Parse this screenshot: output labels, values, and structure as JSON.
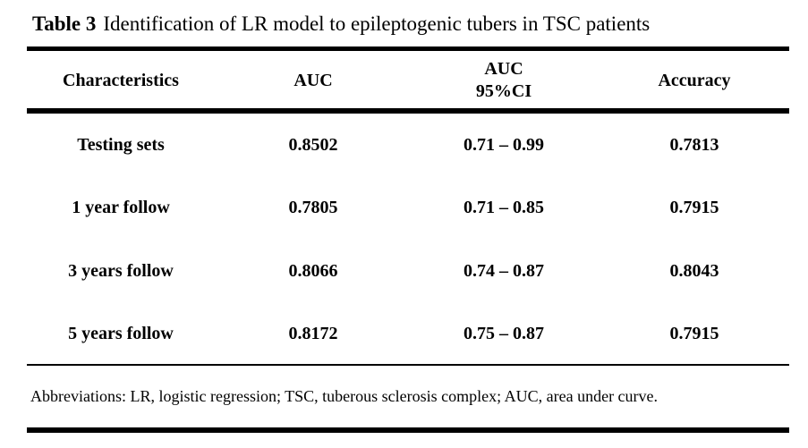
{
  "caption": {
    "label": "Table 3",
    "text": "Identification of LR model to epileptogenic tubers in TSC patients"
  },
  "table": {
    "headers": {
      "characteristics": "Characteristics",
      "auc": "AUC",
      "auc_ci_line1": "AUC",
      "auc_ci_line2": "95%CI",
      "accuracy": "Accuracy"
    },
    "rows": [
      {
        "characteristics": "Testing sets",
        "auc": "0.8502",
        "ci": "0.71 – 0.99",
        "accuracy": "0.7813"
      },
      {
        "characteristics": "1 year follow",
        "auc": "0.7805",
        "ci": "0.71 – 0.85",
        "accuracy": "0.7915"
      },
      {
        "characteristics": "3 years follow",
        "auc": "0.8066",
        "ci": "0.74 – 0.87",
        "accuracy": "0.8043"
      },
      {
        "characteristics": "5 years follow",
        "auc": "0.8172",
        "ci": "0.75 – 0.87",
        "accuracy": "0.7915"
      }
    ]
  },
  "footnote": "Abbreviations: LR, logistic regression; TSC, tuberous sclerosis complex; AUC, area under curve."
}
